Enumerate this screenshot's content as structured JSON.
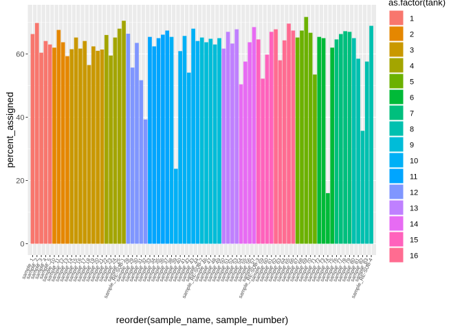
{
  "chart_data": {
    "type": "bar",
    "title": "",
    "xlabel": "reorder(sample_name, sample_number)",
    "ylabel": "percent_assigned",
    "ylim": [
      0,
      75
    ],
    "yticks": [
      0,
      20,
      40,
      60
    ],
    "grid": true,
    "legend": {
      "title": "as.factor(tank)",
      "placement": "right",
      "entries": [
        {
          "label": "1",
          "color": "#F8766D"
        },
        {
          "label": "2",
          "color": "#E58700"
        },
        {
          "label": "3",
          "color": "#C99800"
        },
        {
          "label": "4",
          "color": "#A3A500"
        },
        {
          "label": "5",
          "color": "#6BB100"
        },
        {
          "label": "6",
          "color": "#00BA38"
        },
        {
          "label": "7",
          "color": "#00BF7D"
        },
        {
          "label": "8",
          "color": "#00C0AF"
        },
        {
          "label": "9",
          "color": "#00BCD8"
        },
        {
          "label": "10",
          "color": "#00B0F6"
        },
        {
          "label": "11",
          "color": "#00A5FF"
        },
        {
          "label": "12",
          "color": "#7F96FF"
        },
        {
          "label": "13",
          "color": "#BF80FF"
        },
        {
          "label": "14",
          "color": "#E76BF3"
        },
        {
          "label": "15",
          "color": "#FF62BC"
        },
        {
          "label": "16",
          "color": "#FF6C91"
        }
      ]
    },
    "bars": [
      {
        "x": "sample_1",
        "tank": "1",
        "value": 66.3
      },
      {
        "x": "sample_2",
        "tank": "1",
        "value": 69.8
      },
      {
        "x": "sample_3",
        "tank": "1",
        "value": 60.4
      },
      {
        "x": "sample_4",
        "tank": "1",
        "value": 64.1
      },
      {
        "x": "sample_5",
        "tank": "1",
        "value": 63.0
      },
      {
        "x": "sample_10",
        "tank": "2",
        "value": 62.0
      },
      {
        "x": "sample_11",
        "tank": "2",
        "value": 67.6
      },
      {
        "x": "sample_12",
        "tank": "2",
        "value": 63.7
      },
      {
        "x": "sample_13",
        "tank": "2",
        "value": 59.3
      },
      {
        "x": "sample_14",
        "tank": "3",
        "value": 61.5
      },
      {
        "x": "sample_15",
        "tank": "3",
        "value": 65.2
      },
      {
        "x": "sample_16",
        "tank": "3",
        "value": 61.7
      },
      {
        "x": "sample_17",
        "tank": "3",
        "value": 64.1
      },
      {
        "x": "sample_18",
        "tank": "3",
        "value": 56.5
      },
      {
        "x": "sample_19",
        "tank": "3",
        "value": 62.4
      },
      {
        "x": "sample_20",
        "tank": "3",
        "value": 61.0
      },
      {
        "x": "sample_21",
        "tank": "3",
        "value": 61.4
      },
      {
        "x": "sample_22",
        "tank": "4",
        "value": 66.0
      },
      {
        "x": "sample_23",
        "tank": "4",
        "value": 59.5
      },
      {
        "x": "sample_24",
        "tank": "4",
        "value": 65.2
      },
      {
        "x": "sample_25",
        "tank": "4",
        "value": 68.0
      },
      {
        "x": "sample_RE-SUB-1",
        "tank": "4",
        "value": 70.5
      },
      {
        "x": "sample_28",
        "tank": "12",
        "value": 66.4
      },
      {
        "x": "sample_29",
        "tank": "12",
        "value": 55.7
      },
      {
        "x": "sample_30",
        "tank": "12",
        "value": 63.5
      },
      {
        "x": "sample_31",
        "tank": "12",
        "value": 51.7
      },
      {
        "x": "sample_32",
        "tank": "12",
        "value": 39.3
      },
      {
        "x": "sample_33",
        "tank": "11",
        "value": 65.4
      },
      {
        "x": "sample_34",
        "tank": "11",
        "value": 62.4
      },
      {
        "x": "sample_35",
        "tank": "11",
        "value": 65.0
      },
      {
        "x": "sample_36",
        "tank": "11",
        "value": 66.1
      },
      {
        "x": "sample_37",
        "tank": "11",
        "value": 67.4
      },
      {
        "x": "sample_38",
        "tank": "10",
        "value": 65.4
      },
      {
        "x": "sample_39",
        "tank": "10",
        "value": 23.7
      },
      {
        "x": "sample_40",
        "tank": "10",
        "value": 60.9
      },
      {
        "x": "sample_41",
        "tank": "10",
        "value": 65.7
      },
      {
        "x": "sample_42",
        "tank": "10",
        "value": 54.1
      },
      {
        "x": "sample_43",
        "tank": "10",
        "value": 68.0
      },
      {
        "x": "sample_44",
        "tank": "10",
        "value": 64.1
      },
      {
        "x": "sample_RE-SUB-2",
        "tank": "9",
        "value": 65.2
      },
      {
        "x": "sample_46",
        "tank": "9",
        "value": 63.7
      },
      {
        "x": "sample_47",
        "tank": "9",
        "value": 64.8
      },
      {
        "x": "sample_48",
        "tank": "9",
        "value": 63.0
      },
      {
        "x": "sample_49",
        "tank": "9",
        "value": 65.0
      },
      {
        "x": "sample_50",
        "tank": "13",
        "value": 61.7
      },
      {
        "x": "sample_51",
        "tank": "13",
        "value": 67.0
      },
      {
        "x": "sample_52",
        "tank": "13",
        "value": 63.3
      },
      {
        "x": "sample_53",
        "tank": "13",
        "value": 67.8
      },
      {
        "x": "sample_54",
        "tank": "14",
        "value": 50.4
      },
      {
        "x": "sample_55",
        "tank": "14",
        "value": 57.6
      },
      {
        "x": "sample_56",
        "tank": "14",
        "value": 63.7
      },
      {
        "x": "sample_57",
        "tank": "14",
        "value": 68.5
      },
      {
        "x": "sample_RE-SUB-3",
        "tank": "15",
        "value": 64.6
      },
      {
        "x": "sample_59",
        "tank": "15",
        "value": 52.2
      },
      {
        "x": "sample_60",
        "tank": "15",
        "value": 59.8
      },
      {
        "x": "sample_61",
        "tank": "15",
        "value": 67.0
      },
      {
        "x": "sample_62",
        "tank": "16",
        "value": 67.8
      },
      {
        "x": "sample_63",
        "tank": "16",
        "value": 58.0
      },
      {
        "x": "sample_64",
        "tank": "16",
        "value": 64.3
      },
      {
        "x": "sample_65",
        "tank": "16",
        "value": 69.6
      },
      {
        "x": "sample_66",
        "tank": "16",
        "value": 67.4
      },
      {
        "x": "sample_67",
        "tank": "5",
        "value": 65.2
      },
      {
        "x": "sample_68",
        "tank": "5",
        "value": 67.4
      },
      {
        "x": "sample_69",
        "tank": "5",
        "value": 71.7
      },
      {
        "x": "sample_70",
        "tank": "5",
        "value": 66.7
      },
      {
        "x": "sample_71",
        "tank": "5",
        "value": 53.5
      },
      {
        "x": "sample_72",
        "tank": "6",
        "value": 65.4
      },
      {
        "x": "sample_73",
        "tank": "6",
        "value": 65.0
      },
      {
        "x": "sample_74",
        "tank": "6",
        "value": 16.0
      },
      {
        "x": "sample_75",
        "tank": "6",
        "value": 62.0
      },
      {
        "x": "sample_76",
        "tank": "7",
        "value": 64.6
      },
      {
        "x": "sample_77",
        "tank": "7",
        "value": 66.3
      },
      {
        "x": "sample_78",
        "tank": "7",
        "value": 67.2
      },
      {
        "x": "sample_79",
        "tank": "7",
        "value": 67.0
      },
      {
        "x": "sample_80",
        "tank": "8",
        "value": 65.0
      },
      {
        "x": "sample_81",
        "tank": "8",
        "value": 58.5
      },
      {
        "x": "sample_82",
        "tank": "8",
        "value": 35.7
      },
      {
        "x": "sample_83",
        "tank": "8",
        "value": 57.6
      },
      {
        "x": "sample_RE-SUB-4",
        "tank": "8",
        "value": 68.9
      }
    ]
  },
  "colors": {
    "panel_background": "#EBEBEB",
    "grid_line": "#FFFFFF",
    "tick_text": "#4D4D4D",
    "tick_mark": "#333333"
  }
}
